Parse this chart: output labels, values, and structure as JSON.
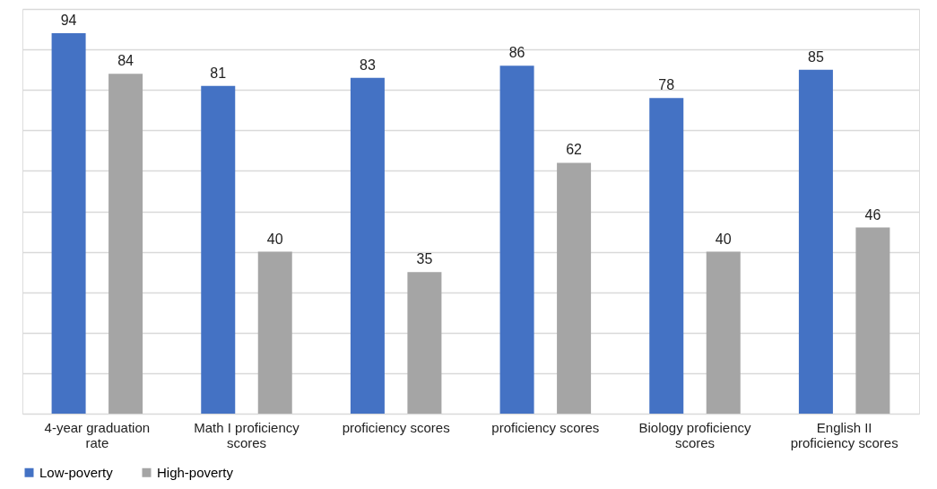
{
  "chart_data": {
    "type": "bar",
    "categories": [
      "4-year graduation rate",
      "Math I proficiency scores",
      "proficiency scores",
      "proficiency scores",
      "Biology proficiency scores",
      "English II proficiency scores"
    ],
    "series": [
      {
        "name": "Low-poverty",
        "color": "#4472c4",
        "values": [
          94,
          81,
          83,
          86,
          78,
          85
        ]
      },
      {
        "name": "High-poverty",
        "color": "#a5a5a5",
        "values": [
          84,
          40,
          35,
          62,
          40,
          46
        ]
      }
    ],
    "ylim": [
      0,
      100
    ],
    "yticks": [
      {
        "value": 0,
        "label": null
      },
      {
        "value": 10,
        "label": null
      },
      {
        "value": 20,
        "label": null
      },
      {
        "value": 30,
        "label": null
      },
      {
        "value": 40,
        "label": null
      },
      {
        "value": 50,
        "label": null
      },
      {
        "value": 60,
        "label": null
      },
      {
        "value": 70,
        "label": null
      },
      {
        "value": 80,
        "label": null
      },
      {
        "value": 90,
        "label": null
      },
      {
        "value": 100,
        "label": null
      }
    ],
    "tick_labels": "x",
    "grid": "y",
    "legend": "bottom",
    "data_labels": true
  }
}
